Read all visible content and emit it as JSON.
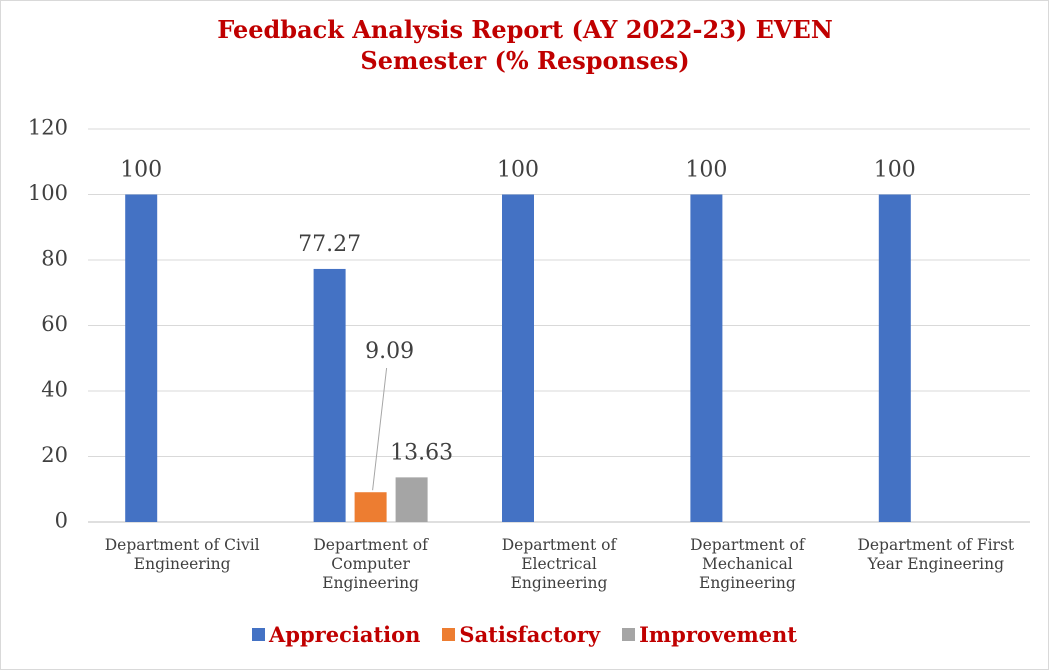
{
  "chart_data": {
    "type": "bar",
    "title": "Feedback Analysis Report (AY 2022-23) EVEN Semester (% Responses)",
    "categories": [
      "Department of Civil Engineering",
      "Department of Computer Engineering",
      "Department of Electrical Engineering",
      "Department of Mechanical Engineering",
      "Department of First Year Engineering"
    ],
    "series": [
      {
        "name": "Appreciation",
        "color": "#4472c4",
        "values": [
          100,
          77.27,
          100,
          100,
          100
        ]
      },
      {
        "name": "Satisfactory",
        "color": "#ed7d31",
        "values": [
          null,
          9.09,
          null,
          null,
          null
        ]
      },
      {
        "name": "Improvement",
        "color": "#a5a5a5",
        "values": [
          null,
          13.63,
          null,
          null,
          null
        ]
      }
    ],
    "ylim": [
      0,
      120
    ],
    "yticks": [
      0,
      20,
      40,
      60,
      80,
      100,
      120
    ],
    "grid": true,
    "legend": "bottom",
    "legend_text_color": "#c00000"
  }
}
